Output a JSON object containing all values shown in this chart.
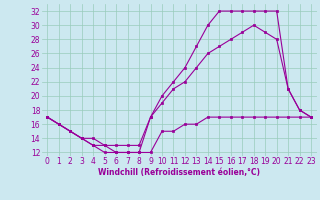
{
  "xlabel": "Windchill (Refroidissement éolien,°C)",
  "ylabel": "",
  "bg_color": "#cce8f0",
  "grid_color": "#99ccbb",
  "line_color": "#990099",
  "xlim": [
    -0.5,
    23.5
  ],
  "ylim": [
    11.5,
    33
  ],
  "yticks": [
    12,
    14,
    16,
    18,
    20,
    22,
    24,
    26,
    28,
    30,
    32
  ],
  "xticks": [
    0,
    1,
    2,
    3,
    4,
    5,
    6,
    7,
    8,
    9,
    10,
    11,
    12,
    13,
    14,
    15,
    16,
    17,
    18,
    19,
    20,
    21,
    22,
    23
  ],
  "series1_x": [
    0,
    1,
    2,
    3,
    4,
    5,
    6,
    7,
    8,
    9,
    10,
    11,
    12,
    13,
    14,
    15,
    16,
    17,
    18,
    19,
    20,
    21,
    22,
    23
  ],
  "series1_y": [
    17,
    16,
    15,
    14,
    13,
    13,
    12,
    12,
    12,
    12,
    15,
    15,
    16,
    16,
    17,
    17,
    17,
    17,
    17,
    17,
    17,
    17,
    17,
    17
  ],
  "series2_x": [
    0,
    1,
    2,
    3,
    4,
    5,
    6,
    7,
    8,
    9,
    10,
    11,
    12,
    13,
    14,
    15,
    16,
    17,
    18,
    19,
    20,
    21,
    22,
    23
  ],
  "series2_y": [
    17,
    16,
    15,
    14,
    13,
    12,
    12,
    12,
    12,
    17,
    20,
    22,
    24,
    27,
    30,
    32,
    32,
    32,
    32,
    32,
    32,
    21,
    18,
    17
  ],
  "series3_x": [
    0,
    1,
    2,
    3,
    4,
    5,
    6,
    7,
    8,
    9,
    10,
    11,
    12,
    13,
    14,
    15,
    16,
    17,
    18,
    19,
    20,
    21,
    22,
    23
  ],
  "series3_y": [
    17,
    16,
    15,
    14,
    14,
    13,
    13,
    13,
    13,
    17,
    19,
    21,
    22,
    24,
    26,
    27,
    28,
    29,
    30,
    29,
    28,
    21,
    18,
    17
  ],
  "tick_color": "#990099",
  "xlabel_color": "#990099",
  "tick_fontsize": 5.5,
  "xlabel_fontsize": 5.5
}
